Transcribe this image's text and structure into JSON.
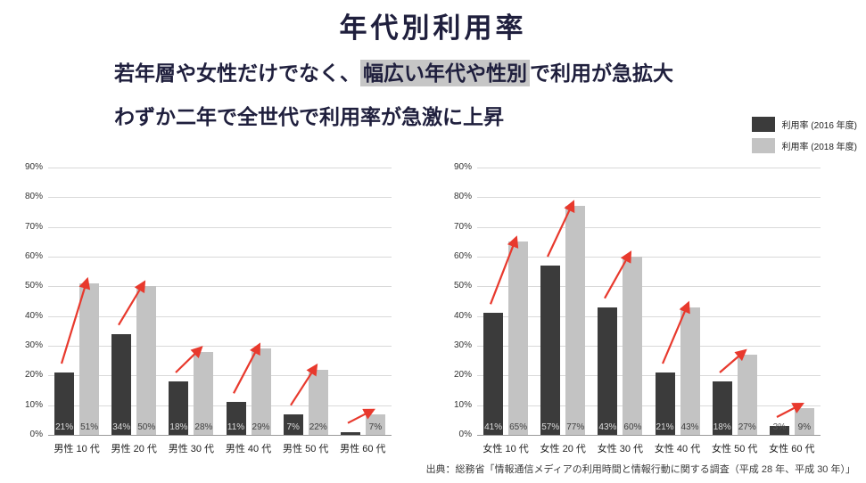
{
  "header": {
    "title": "年代別利用率",
    "subtitle_line1": {
      "pre": "若年層や女性だけでなく、",
      "highlight": "幅広い年代や性別",
      "post": "で利用が急拡大"
    },
    "subtitle_line2": "わずか二年で全世代で利用率が急激に上昇"
  },
  "legend": [
    {
      "label": "利用率 (2016 年度)",
      "color": "#3b3b3b"
    },
    {
      "label": "利用率 (2018 年度)",
      "color": "#c3c3c3"
    }
  ],
  "footer": {
    "source": "出典：総務省「情報通信メディアの利用時間と情報行動に関する調査（平成 28 年、平成 30 年）」"
  },
  "colors": {
    "bar_2016": "#3b3b3b",
    "bar_2018": "#c3c3c3",
    "arrow": "#e8392d",
    "highlight_bg": "#c6c6c6",
    "heading": "#1f1f3d",
    "gridline": "#d9d9d9",
    "axis": "#9a9a9a"
  },
  "chart_data": [
    {
      "type": "bar",
      "categories": [
        "男性 10 代",
        "男性 20 代",
        "男性 30 代",
        "男性 40 代",
        "男性 50 代",
        "男性 60 代"
      ],
      "series": [
        {
          "name": "利用率 (2016 年度)",
          "values": [
            21,
            34,
            18,
            11,
            7,
            1
          ],
          "labels": [
            "21%",
            "34%",
            "18%",
            "11%",
            "7%",
            ""
          ]
        },
        {
          "name": "利用率 (2018 年度)",
          "values": [
            51,
            50,
            28,
            29,
            22,
            7
          ],
          "labels": [
            "51%",
            "50%",
            "28%",
            "29%",
            "22%",
            "7%"
          ]
        }
      ],
      "ylim": [
        0,
        90
      ],
      "yticks": [
        "90%",
        "80%",
        "70%",
        "60%",
        "50%",
        "40%",
        "30%",
        "20%",
        "10%",
        "0%"
      ],
      "grid": true,
      "trend_arrows": true,
      "legend_position": "top-right"
    },
    {
      "type": "bar",
      "categories": [
        "女性 10 代",
        "女性 20 代",
        "女性 30 代",
        "女性 40 代",
        "女性 50 代",
        "女性 60 代"
      ],
      "series": [
        {
          "name": "利用率 (2016 年度)",
          "values": [
            41,
            57,
            43,
            21,
            18,
            3
          ],
          "labels": [
            "41%",
            "57%",
            "43%",
            "21%",
            "18%",
            "3%"
          ]
        },
        {
          "name": "利用率 (2018 年度)",
          "values": [
            65,
            77,
            60,
            43,
            27,
            9
          ],
          "labels": [
            "65%",
            "77%",
            "60%",
            "43%",
            "27%",
            "9%"
          ]
        }
      ],
      "ylim": [
        0,
        90
      ],
      "yticks": [
        "90%",
        "80%",
        "70%",
        "60%",
        "50%",
        "40%",
        "30%",
        "20%",
        "10%",
        "0%"
      ],
      "grid": true,
      "trend_arrows": true,
      "legend_position": "top-right"
    }
  ]
}
